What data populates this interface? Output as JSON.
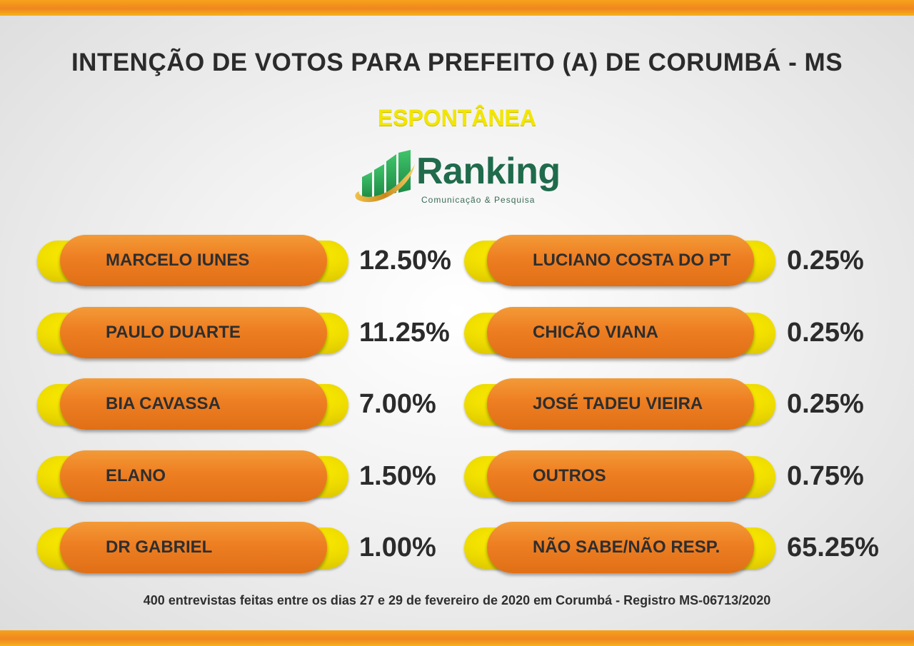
{
  "header": {
    "title": "INTENÇÃO DE VOTOS PARA PREFEITO (A) DE CORUMBÁ - MS",
    "subtitle": "ESPONTÂNEA"
  },
  "logo": {
    "name": "Ranking",
    "tagline": "Comunicação & Pesquisa"
  },
  "colors": {
    "accent_orange": "#ee7e22",
    "accent_yellow": "#f7e600",
    "logo_green": "#1f6b4c",
    "subtitle_yellow": "#f2e600"
  },
  "chart_data": {
    "type": "table",
    "title": "INTENÇÃO DE VOTOS PARA PREFEITO (A) DE CORUMBÁ - MS",
    "subtitle": "ESPONTÂNEA",
    "categories": [
      "MARCELO IUNES",
      "PAULO DUARTE",
      "BIA CAVASSA",
      "ELANO",
      "DR GABRIEL",
      "LUCIANO COSTA DO PT",
      "CHICÃO VIANA",
      "JOSÉ TADEU VIEIRA",
      "OUTROS",
      "NÃO SABE/NÃO RESP."
    ],
    "values": [
      12.5,
      11.25,
      7.0,
      1.5,
      1.0,
      0.25,
      0.25,
      0.25,
      0.75,
      65.25
    ],
    "value_labels": [
      "12.50%",
      "11.25%",
      "7.00%",
      "1.50%",
      "1.00%",
      "0.25%",
      "0.25%",
      "0.25%",
      "0.75%",
      "65.25%"
    ],
    "unit": "%"
  },
  "footnote": "400 entrevistas feitas entre os dias 27 e 29 de fevereiro de 2020 em Corumbá - Registro MS-06713/2020"
}
